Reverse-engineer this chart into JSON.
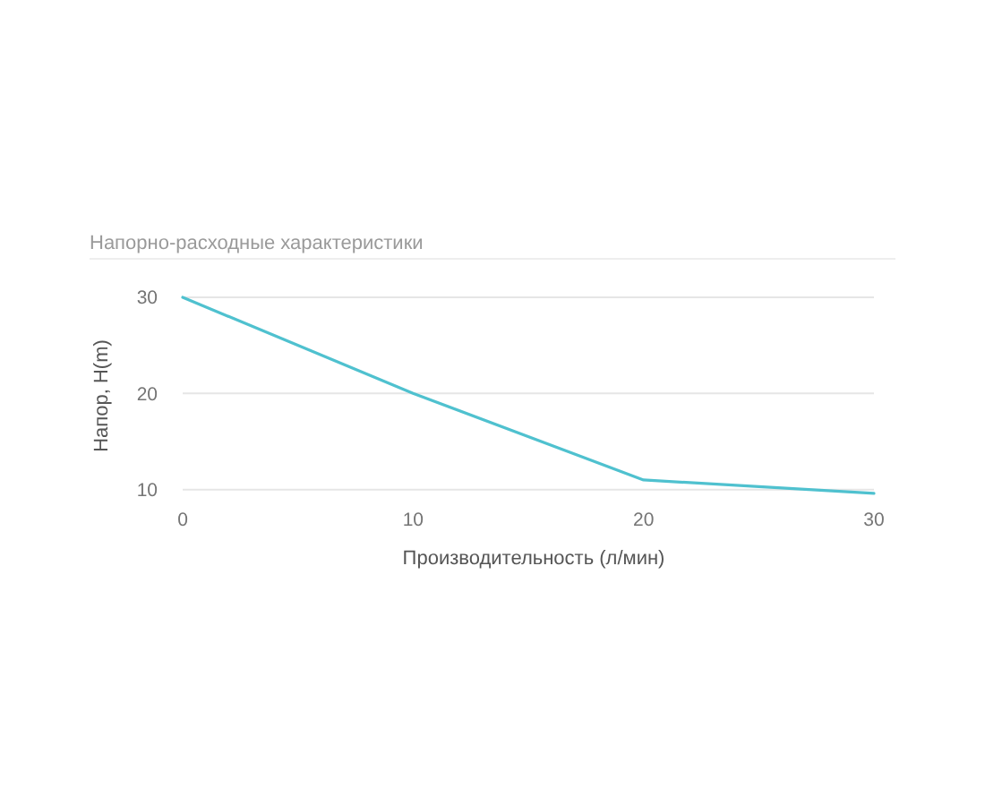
{
  "chart_data": {
    "type": "line",
    "title": "Напорно-расходные характеристики",
    "xlabel": "Производительность (л/мин)",
    "ylabel": "Напор, H(m)",
    "x": [
      0,
      10,
      20,
      30
    ],
    "series": [
      {
        "color": "#4fc1cf",
        "values": [
          30,
          20,
          11,
          9.6
        ]
      }
    ],
    "xlim": [
      0,
      30
    ],
    "xticks": [
      0,
      10,
      20,
      30
    ],
    "ylim": [
      9.5,
      30
    ],
    "yticks": [
      10,
      20,
      30
    ],
    "grid": "y",
    "marker": "none",
    "line_style": "solid"
  }
}
